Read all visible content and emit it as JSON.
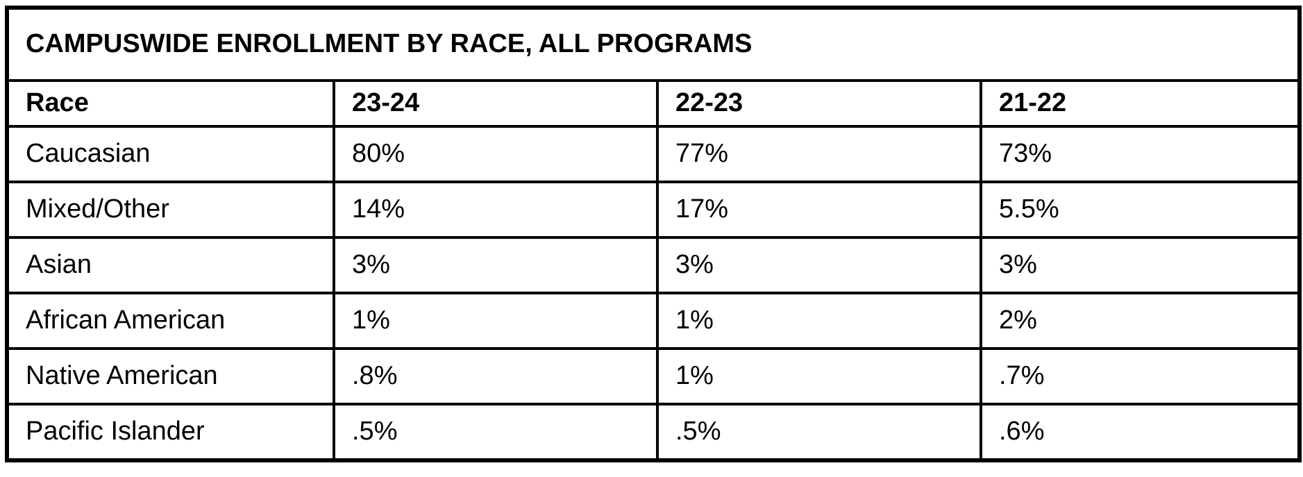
{
  "title_bar": {
    "text": "CAMPUSWIDE ENROLLMENT BY RACE, ALL PROGRAMS",
    "bg_color": "#cbcbcb"
  },
  "table": {
    "columns": [
      "Race",
      "23-24",
      "22-23",
      "21-22"
    ],
    "rows": [
      [
        "Caucasian",
        "80%",
        "77%",
        "73%"
      ],
      [
        "Mixed/Other",
        "14%",
        "17%",
        "5.5%"
      ],
      [
        "Asian",
        "3%",
        "3%",
        "3%"
      ],
      [
        "African American",
        "1%",
        "1%",
        "2%"
      ],
      [
        "Native American",
        ".8%",
        "1%",
        ".7%"
      ],
      [
        "Pacific Islander",
        ".5%",
        ".5%",
        ".6%"
      ]
    ]
  },
  "chart_data": {
    "type": "table",
    "title": "CAMPUSWIDE ENROLLMENT BY RACE, ALL PROGRAMS",
    "categories": [
      "Caucasian",
      "Mixed/Other",
      "Asian",
      "African American",
      "Native American",
      "Pacific Islander"
    ],
    "series": [
      {
        "name": "23-24",
        "values": [
          "80%",
          "14%",
          "3%",
          "1%",
          ".8%",
          ".5%"
        ]
      },
      {
        "name": "22-23",
        "values": [
          "77%",
          "17%",
          "3%",
          "1%",
          "1%",
          ".5%"
        ]
      },
      {
        "name": "21-22",
        "values": [
          "73%",
          "5.5%",
          "3%",
          "2%",
          ".7%",
          ".6%"
        ]
      }
    ]
  },
  "colors": {
    "border": "#000000",
    "text": "#000000",
    "title_bg": "#cbcbcb",
    "cell_bg": "#ffffff"
  }
}
